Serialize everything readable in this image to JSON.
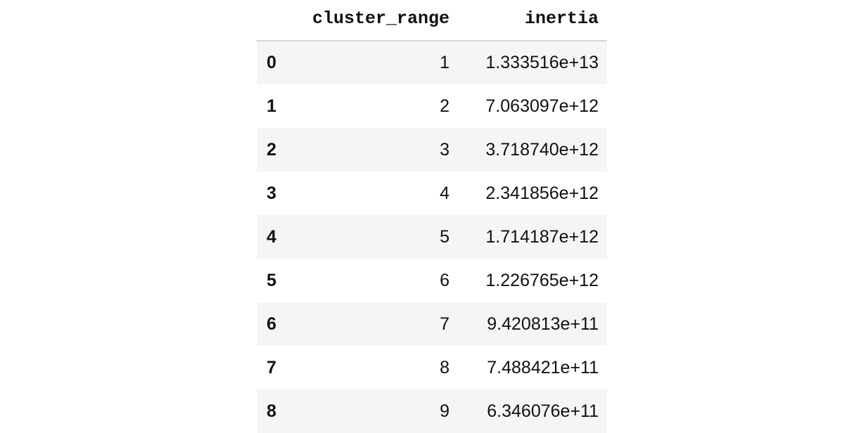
{
  "table": {
    "columns": [
      "",
      "cluster_range",
      "inertia"
    ],
    "rows": [
      {
        "index": "0",
        "cluster_range": "1",
        "inertia": "1.333516e+13"
      },
      {
        "index": "1",
        "cluster_range": "2",
        "inertia": "7.063097e+12"
      },
      {
        "index": "2",
        "cluster_range": "3",
        "inertia": "3.718740e+12"
      },
      {
        "index": "3",
        "cluster_range": "4",
        "inertia": "2.341856e+12"
      },
      {
        "index": "4",
        "cluster_range": "5",
        "inertia": "1.714187e+12"
      },
      {
        "index": "5",
        "cluster_range": "6",
        "inertia": "1.226765e+12"
      },
      {
        "index": "6",
        "cluster_range": "7",
        "inertia": "9.420813e+11"
      },
      {
        "index": "7",
        "cluster_range": "8",
        "inertia": "7.488421e+11"
      },
      {
        "index": "8",
        "cluster_range": "9",
        "inertia": "6.346076e+11"
      }
    ]
  }
}
